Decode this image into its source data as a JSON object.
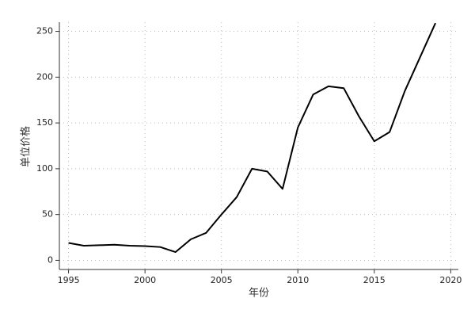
{
  "chart_data": {
    "type": "line",
    "x_label": "年份",
    "y_label": "单位价格",
    "x": [
      1995,
      1996,
      1997,
      1998,
      1999,
      2000,
      2001,
      2002,
      2003,
      2004,
      2005,
      2006,
      2007,
      2008,
      2009,
      2010,
      2011,
      2012,
      2013,
      2014,
      2015,
      2016,
      2017,
      2018,
      2019
    ],
    "series": [
      {
        "name": "单位价格",
        "color": "#000000",
        "values": [
          19,
          16,
          16.5,
          17,
          16,
          15.5,
          14.5,
          9,
          23,
          30,
          50,
          69,
          100,
          97,
          78,
          145,
          181,
          190,
          188,
          157,
          130,
          140,
          185,
          222,
          259
        ]
      }
    ],
    "xlim": [
      1994.4,
      2020.5
    ],
    "xticks": [
      1995,
      2000,
      2005,
      2010,
      2015,
      2020
    ],
    "ylim": [
      -10,
      260
    ],
    "yticks": [
      0,
      50,
      100,
      150,
      200,
      250
    ],
    "grid": true
  }
}
